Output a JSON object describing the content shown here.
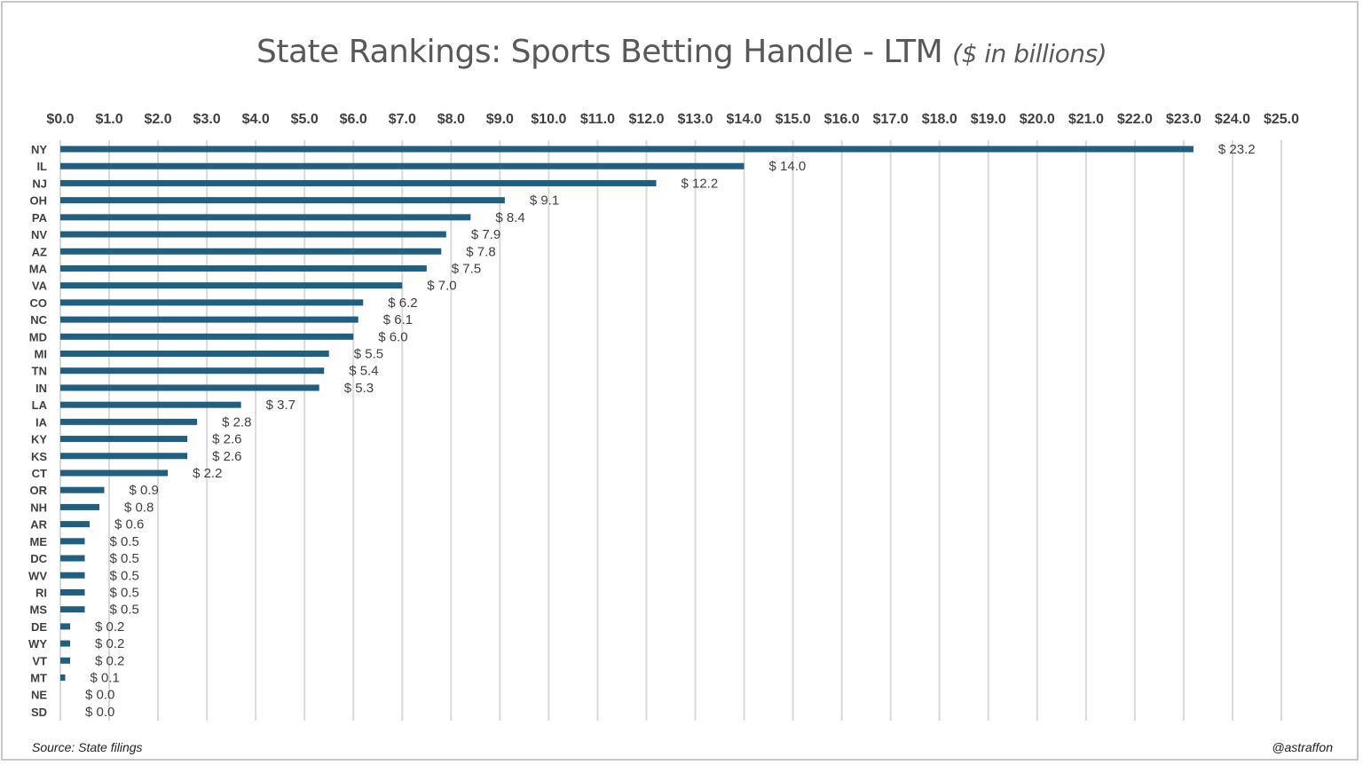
{
  "chart_data": {
    "type": "bar",
    "orientation": "horizontal",
    "title": "State Rankings: Sports Betting Handle - LTM",
    "subtitle": "($ in billions)",
    "xlim": [
      0,
      25
    ],
    "x_ticks": [
      "$0.0",
      "$1.0",
      "$2.0",
      "$3.0",
      "$4.0",
      "$5.0",
      "$6.0",
      "$7.0",
      "$8.0",
      "$9.0",
      "$10.0",
      "$11.0",
      "$12.0",
      "$13.0",
      "$14.0",
      "$15.0",
      "$16.0",
      "$17.0",
      "$18.0",
      "$19.0",
      "$20.0",
      "$21.0",
      "$22.0",
      "$23.0",
      "$24.0",
      "$25.0"
    ],
    "x_axis_position": "top",
    "grid": "vertical",
    "bar_color": "#1f5f80",
    "categories": [
      "NY",
      "IL",
      "NJ",
      "OH",
      "PA",
      "NV",
      "AZ",
      "MA",
      "VA",
      "CO",
      "NC",
      "MD",
      "MI",
      "TN",
      "IN",
      "LA",
      "IA",
      "KY",
      "KS",
      "CT",
      "OR",
      "NH",
      "AR",
      "ME",
      "DC",
      "WV",
      "RI",
      "MS",
      "DE",
      "WY",
      "VT",
      "MT",
      "NE",
      "SD"
    ],
    "values": [
      23.2,
      14.0,
      12.2,
      9.1,
      8.4,
      7.9,
      7.8,
      7.5,
      7.0,
      6.2,
      6.1,
      6.0,
      5.5,
      5.4,
      5.3,
      3.7,
      2.8,
      2.6,
      2.6,
      2.2,
      0.9,
      0.8,
      0.6,
      0.5,
      0.5,
      0.5,
      0.5,
      0.5,
      0.2,
      0.2,
      0.2,
      0.1,
      0.0,
      0.0
    ],
    "data_labels": [
      "$ 23.2",
      "$ 14.0",
      "$ 12.2",
      "$ 9.1",
      "$ 8.4",
      "$ 7.9",
      "$ 7.8",
      "$ 7.5",
      "$ 7.0",
      "$ 6.2",
      "$ 6.1",
      "$ 6.0",
      "$ 5.5",
      "$ 5.4",
      "$ 5.3",
      "$ 3.7",
      "$ 2.8",
      "$ 2.6",
      "$ 2.6",
      "$ 2.2",
      "$ 0.9",
      "$ 0.8",
      "$ 0.6",
      "$ 0.5",
      "$ 0.5",
      "$ 0.5",
      "$ 0.5",
      "$ 0.5",
      "$ 0.2",
      "$ 0.2",
      "$ 0.2",
      "$ 0.1",
      "$ 0.0",
      "$ 0.0"
    ]
  },
  "footer": {
    "source": "Source: State filings",
    "handle": "@astraffon"
  }
}
